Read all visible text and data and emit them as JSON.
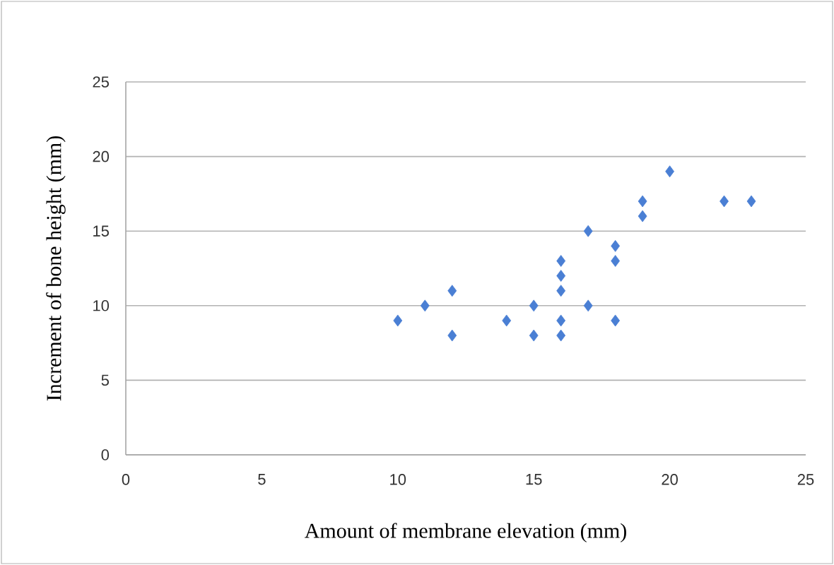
{
  "chart_data": {
    "type": "scatter",
    "xlabel": "Amount of membrane elevation (mm)",
    "ylabel": "Increment of bone height (mm)",
    "x": [
      10,
      11,
      12,
      12,
      14,
      15,
      15,
      16,
      16,
      16,
      16,
      16,
      17,
      17,
      18,
      18,
      18,
      19,
      19,
      20,
      22,
      23
    ],
    "values": [
      9,
      10,
      11,
      8,
      9,
      10,
      8,
      13,
      12,
      11,
      9,
      8,
      15,
      10,
      14,
      13,
      9,
      17,
      16,
      19,
      17,
      17
    ],
    "color": "#4a7fd4",
    "marker": "diamond",
    "xlim": [
      0,
      25
    ],
    "ylim": [
      0,
      25
    ],
    "xticks": [
      0,
      5,
      10,
      15,
      20,
      25
    ],
    "yticks": [
      0,
      5,
      10,
      15,
      20,
      25
    ],
    "grid": "y"
  }
}
